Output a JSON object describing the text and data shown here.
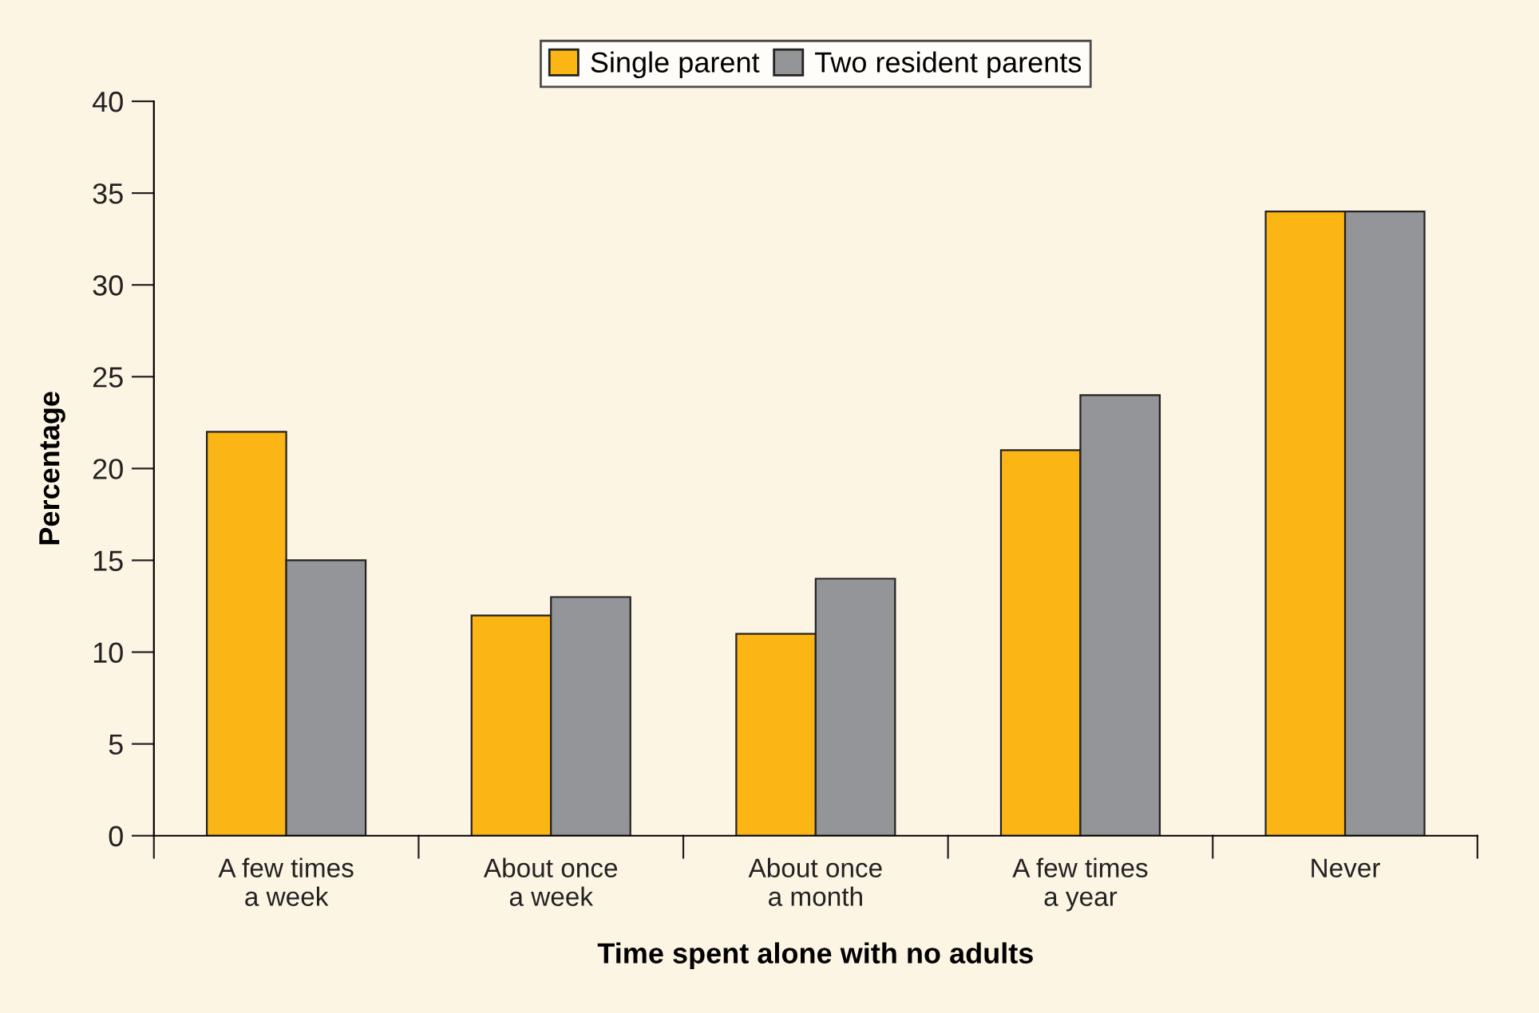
{
  "chart_data": {
    "type": "bar",
    "xlabel": "Time spent alone with no adults",
    "ylabel": "Percentage",
    "categories": [
      "A few times\na week",
      "About once\na week",
      "About once\na month",
      "A few times\na year",
      "Never"
    ],
    "series": [
      {
        "name": "Single parent",
        "color": "#fbb615",
        "values": [
          22,
          12,
          11,
          21,
          34
        ]
      },
      {
        "name": "Two resident parents",
        "color": "#939598",
        "values": [
          15,
          13,
          14,
          24,
          34
        ]
      }
    ],
    "ylim": [
      0,
      40
    ],
    "yticks": [
      0,
      5,
      10,
      15,
      20,
      25,
      30,
      35,
      40
    ],
    "grid": false,
    "legend": "top"
  }
}
